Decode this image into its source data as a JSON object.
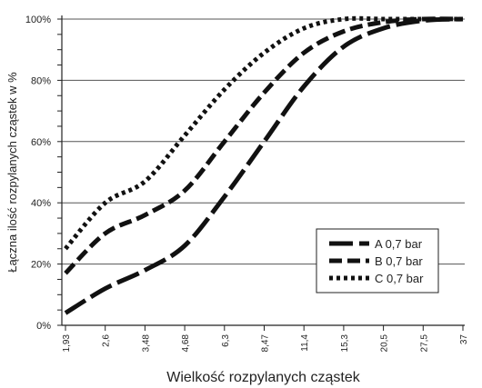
{
  "chart_data": {
    "type": "line",
    "xlabel": "Wielkość rozpylanych cząstek",
    "ylabel": "Łączna ilość rozpylanych cząstek w %",
    "categories": [
      "1,93",
      "2,6",
      "3,48",
      "4,68",
      "6,3",
      "8,47",
      "11,4",
      "15,3",
      "20,5",
      "27,5",
      "37"
    ],
    "y_ticks": [
      "0%",
      "20%",
      "40%",
      "60%",
      "80%",
      "100%"
    ],
    "ylim": [
      0,
      100
    ],
    "grid": "horizontal",
    "legend_position": "bottom-right",
    "series": [
      {
        "name": "A 0,7 bar",
        "dash": "long-dash",
        "color": "#111111",
        "values": [
          4,
          12,
          18,
          26,
          42,
          60,
          78,
          91,
          97,
          99.5,
          100
        ]
      },
      {
        "name": "B 0,7 bar",
        "dash": "dash",
        "color": "#111111",
        "values": [
          17,
          30,
          36,
          44,
          60,
          76,
          89,
          96,
          99,
          100,
          100
        ]
      },
      {
        "name": "C 0,7 bar",
        "dash": "dot",
        "color": "#111111",
        "values": [
          25,
          40,
          47,
          62,
          77,
          89,
          97,
          100,
          100,
          100,
          100
        ]
      }
    ]
  }
}
